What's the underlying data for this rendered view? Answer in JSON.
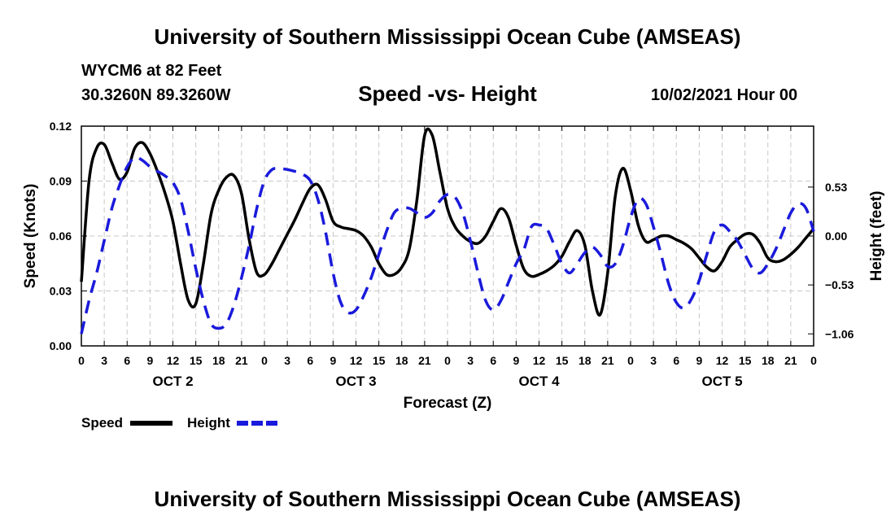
{
  "header": {
    "title": "University of Southern Mississippi Ocean Cube (AMSEAS)",
    "station": "WYCM6 at 82 Feet",
    "coords": "30.3260N  89.3260W",
    "datetime": "10/02/2021 Hour 00",
    "footer_title": "University of Southern Mississippi Ocean Cube (AMSEAS)"
  },
  "chart_data": {
    "type": "line",
    "title": "Speed -vs- Height",
    "xlabel": "Forecast (Z)",
    "ylabel": "Speed (Knots)",
    "y2label": "Height (feet)",
    "xlim": [
      0,
      96
    ],
    "ylim": [
      0,
      0.12
    ],
    "y2lim": [
      -1.19,
      1.19
    ],
    "grid": true,
    "x_ticks": [
      0,
      3,
      6,
      9,
      12,
      15,
      18,
      21,
      24,
      27,
      30,
      33,
      36,
      39,
      42,
      45,
      48,
      51,
      54,
      57,
      60,
      63,
      66,
      69,
      72,
      75,
      78,
      81,
      84,
      87,
      90,
      93,
      96
    ],
    "x_tick_labels": [
      "0",
      "3",
      "6",
      "9",
      "12",
      "15",
      "18",
      "21",
      "0",
      "3",
      "6",
      "9",
      "12",
      "15",
      "18",
      "21",
      "0",
      "3",
      "6",
      "9",
      "12",
      "15",
      "18",
      "21",
      "0",
      "3",
      "6",
      "9",
      "12",
      "15",
      "18",
      "21",
      "0"
    ],
    "y_ticks": [
      0,
      0.03,
      0.06,
      0.09,
      0.12
    ],
    "y_tick_labels": [
      "0.00",
      "0.03",
      "0.06",
      "0.09",
      "0.12"
    ],
    "y2_ticks": [
      -1.06,
      -0.53,
      0.0,
      0.53
    ],
    "y2_tick_labels": [
      "−1.06",
      "−0.53",
      "0.00",
      "0.53"
    ],
    "day_labels": [
      {
        "label": "OCT 2",
        "x": 12
      },
      {
        "label": "OCT 3",
        "x": 36
      },
      {
        "label": "OCT 4",
        "x": 60
      },
      {
        "label": "OCT 5",
        "x": 84
      }
    ],
    "legend": {
      "position": "bottom-left",
      "entries": [
        "Speed",
        "Height"
      ]
    },
    "series": [
      {
        "name": "Speed",
        "axis": "left",
        "color": "#000000",
        "style": "solid",
        "x": [
          0,
          1,
          2,
          3,
          4,
          5,
          6,
          7,
          8,
          9,
          10,
          11,
          12,
          13,
          14,
          15,
          16,
          17,
          18,
          19,
          20,
          21,
          22,
          23,
          24,
          25,
          26,
          27,
          28,
          29,
          30,
          31,
          32,
          33,
          34,
          35,
          36,
          37,
          38,
          39,
          40,
          41,
          42,
          43,
          44,
          45,
          46,
          47,
          48,
          49,
          50,
          51,
          52,
          53,
          54,
          55,
          56,
          57,
          58,
          59,
          60,
          61,
          62,
          63,
          64,
          65,
          66,
          67,
          68,
          69,
          70,
          71,
          72,
          73,
          74,
          75,
          76,
          77,
          78,
          79,
          80,
          81,
          82,
          83,
          84,
          85,
          86,
          87,
          88,
          89,
          90,
          91,
          92,
          93,
          94,
          95,
          96
        ],
        "values": [
          0.035,
          0.09,
          0.108,
          0.11,
          0.1,
          0.091,
          0.095,
          0.108,
          0.111,
          0.105,
          0.095,
          0.083,
          0.068,
          0.045,
          0.025,
          0.023,
          0.045,
          0.072,
          0.085,
          0.092,
          0.093,
          0.083,
          0.058,
          0.04,
          0.039,
          0.045,
          0.053,
          0.061,
          0.069,
          0.078,
          0.086,
          0.088,
          0.08,
          0.068,
          0.065,
          0.064,
          0.063,
          0.06,
          0.054,
          0.045,
          0.039,
          0.039,
          0.043,
          0.053,
          0.08,
          0.115,
          0.115,
          0.095,
          0.075,
          0.065,
          0.06,
          0.057,
          0.056,
          0.06,
          0.068,
          0.075,
          0.07,
          0.055,
          0.042,
          0.038,
          0.039,
          0.041,
          0.044,
          0.049,
          0.057,
          0.063,
          0.055,
          0.03,
          0.017,
          0.04,
          0.082,
          0.097,
          0.085,
          0.066,
          0.057,
          0.058,
          0.06,
          0.06,
          0.058,
          0.056,
          0.053,
          0.048,
          0.043,
          0.041,
          0.046,
          0.054,
          0.058,
          0.061,
          0.061,
          0.056,
          0.048,
          0.046,
          0.047,
          0.05,
          0.054,
          0.059,
          0.064
        ]
      },
      {
        "name": "Height",
        "axis": "right",
        "color": "#1a1adc",
        "style": "dashed",
        "x": [
          0,
          1,
          2,
          3,
          4,
          5,
          6,
          7,
          8,
          9,
          10,
          11,
          12,
          13,
          14,
          15,
          16,
          17,
          18,
          19,
          20,
          21,
          22,
          23,
          24,
          25,
          26,
          27,
          28,
          29,
          30,
          31,
          32,
          33,
          34,
          35,
          36,
          37,
          38,
          39,
          40,
          41,
          42,
          43,
          44,
          45,
          46,
          47,
          48,
          49,
          50,
          51,
          52,
          53,
          54,
          55,
          56,
          57,
          58,
          59,
          60,
          61,
          62,
          63,
          64,
          65,
          66,
          67,
          68,
          69,
          70,
          71,
          72,
          73,
          74,
          75,
          76,
          77,
          78,
          79,
          80,
          81,
          82,
          83,
          84,
          85,
          86,
          87,
          88,
          89,
          90,
          91,
          92,
          93,
          94,
          95,
          96
        ],
        "values": [
          -1.06,
          -0.7,
          -0.4,
          -0.05,
          0.3,
          0.55,
          0.75,
          0.85,
          0.82,
          0.75,
          0.7,
          0.65,
          0.58,
          0.4,
          0.05,
          -0.35,
          -0.7,
          -0.95,
          -1.0,
          -0.95,
          -0.75,
          -0.45,
          -0.1,
          0.3,
          0.6,
          0.72,
          0.73,
          0.72,
          0.7,
          0.67,
          0.6,
          0.4,
          0.05,
          -0.4,
          -0.72,
          -0.83,
          -0.8,
          -0.65,
          -0.45,
          -0.2,
          0.05,
          0.25,
          0.3,
          0.3,
          0.25,
          0.2,
          0.25,
          0.38,
          0.45,
          0.42,
          0.25,
          -0.05,
          -0.4,
          -0.7,
          -0.8,
          -0.7,
          -0.5,
          -0.3,
          -0.15,
          0.1,
          0.12,
          0.08,
          -0.1,
          -0.3,
          -0.4,
          -0.3,
          -0.18,
          -0.12,
          -0.2,
          -0.33,
          -0.3,
          -0.1,
          0.2,
          0.4,
          0.35,
          0.1,
          -0.2,
          -0.52,
          -0.72,
          -0.78,
          -0.68,
          -0.48,
          -0.2,
          0.05,
          0.12,
          0.05,
          -0.05,
          -0.2,
          -0.35,
          -0.4,
          -0.3,
          -0.15,
          0.05,
          0.25,
          0.35,
          0.3,
          0.05
        ]
      }
    ]
  }
}
